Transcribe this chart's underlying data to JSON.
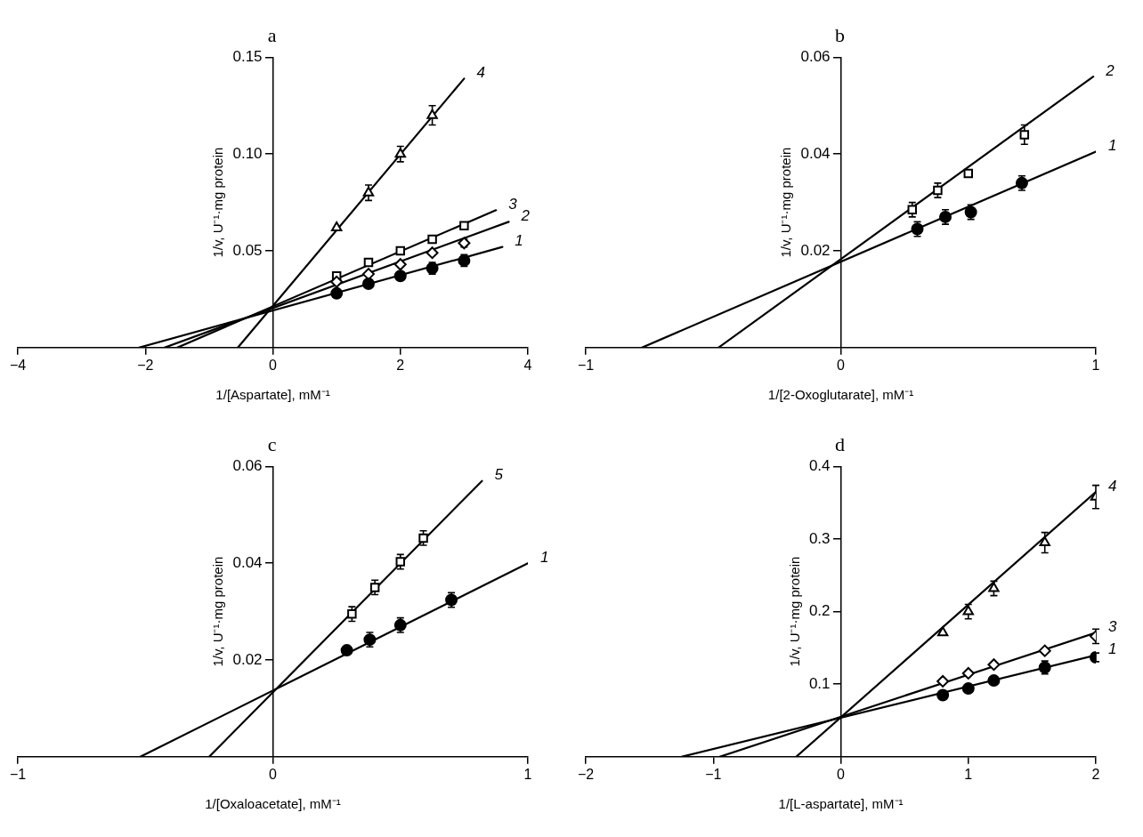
{
  "chart_data": [
    {
      "type": "scatter",
      "title": "a",
      "xlabel": "1/[Aspartate], mM⁻¹",
      "ylabel": "1/v, U⁻¹·mg protein",
      "xlim": [
        -4,
        4
      ],
      "xticks": [
        {
          "value": -4,
          "label": "−4"
        },
        {
          "value": -2,
          "label": "−2"
        },
        0,
        2,
        4
      ],
      "ylim": [
        0,
        0.15
      ],
      "yticks": [
        0.05,
        {
          "value": 0.1,
          "label": "0.10"
        },
        0.15
      ],
      "grid": false,
      "legend": false,
      "series": [
        {
          "type": "scatter",
          "marker": "circle",
          "color": "#000000",
          "x": [
            1,
            1.5,
            2,
            2.5,
            3
          ],
          "values": [
            0.028,
            0.033,
            0.037,
            0.041,
            0.045
          ],
          "errors": [
            null,
            null,
            null,
            0.003,
            0.003
          ]
        },
        {
          "type": "scatter",
          "marker": "diamond",
          "color": "#000000",
          "x": [
            1,
            1.5,
            2,
            2.5,
            3
          ],
          "values": [
            0.034,
            0.038,
            0.043,
            0.049,
            0.054
          ],
          "errors": [
            null,
            null,
            null,
            null,
            0.002
          ]
        },
        {
          "type": "scatter",
          "marker": "square",
          "color": "#000000",
          "x": [
            1,
            1.5,
            2,
            2.5,
            3
          ],
          "values": [
            0.037,
            0.044,
            0.05,
            0.056,
            0.063
          ]
        },
        {
          "type": "scatter",
          "marker": "triangle",
          "color": "#000000",
          "x": [
            1,
            1.5,
            2,
            2.5
          ],
          "values": [
            0.062,
            0.08,
            0.1,
            0.12
          ],
          "errors": [
            null,
            0.004,
            0.004,
            0.005
          ]
        },
        {
          "type": "line",
          "name": "1",
          "marker": "none",
          "color": "#000000",
          "x": [
            -2.1,
            3.6
          ],
          "values": [
            0,
            0.052
          ]
        },
        {
          "type": "line",
          "name": "2",
          "marker": "none",
          "color": "#000000",
          "x": [
            -1.7,
            3.7
          ],
          "values": [
            0,
            0.065
          ]
        },
        {
          "type": "line",
          "name": "3",
          "marker": "none",
          "color": "#000000",
          "x": [
            -1.5,
            3.5
          ],
          "values": [
            0,
            0.071
          ]
        },
        {
          "type": "line",
          "name": "4",
          "marker": "none",
          "color": "#000000",
          "x": [
            -0.55,
            3
          ],
          "values": [
            0,
            0.139
          ]
        }
      ]
    },
    {
      "type": "scatter",
      "title": "b",
      "xlabel": "1/[2-Oxoglutarate], mM⁻¹",
      "ylabel": "1/v, U⁻¹·mg protein",
      "xlim": [
        -1,
        1
      ],
      "xticks": [
        {
          "value": -1,
          "label": "−1"
        },
        0,
        1
      ],
      "ylim": [
        0,
        0.06
      ],
      "yticks": [
        0.02,
        0.04,
        0.06
      ],
      "grid": false,
      "legend": false,
      "series": [
        {
          "type": "scatter",
          "marker": "circle",
          "color": "#000000",
          "x": [
            0.3,
            0.41,
            0.51,
            0.71
          ],
          "values": [
            0.0245,
            0.027,
            0.028,
            0.034
          ],
          "errors": [
            0.0015,
            0.0015,
            0.0015,
            0.0015
          ]
        },
        {
          "type": "scatter",
          "marker": "square",
          "color": "#000000",
          "x": [
            0.28,
            0.38,
            0.5,
            0.72
          ],
          "values": [
            0.0285,
            0.0325,
            0.036,
            0.044
          ],
          "errors": [
            0.0015,
            0.0015,
            null,
            0.002
          ]
        },
        {
          "type": "line",
          "name": "1",
          "marker": "none",
          "color": "#000000",
          "x": [
            -0.78,
            1
          ],
          "values": [
            0,
            0.0405
          ]
        },
        {
          "type": "line",
          "name": "2",
          "marker": "none",
          "color": "#000000",
          "x": [
            -0.48,
            0.99
          ],
          "values": [
            0,
            0.056
          ]
        }
      ]
    },
    {
      "type": "scatter",
      "title": "c",
      "xlabel": "1/[Oxaloacetate], mM⁻¹",
      "ylabel": "1/v, U⁻¹·mg protein",
      "xlim": [
        -1,
        1
      ],
      "xticks": [
        {
          "value": -1,
          "label": "−1"
        },
        0,
        1
      ],
      "ylim": [
        0,
        0.06
      ],
      "yticks": [
        0.02,
        0.04,
        0.06
      ],
      "grid": false,
      "legend": false,
      "series": [
        {
          "type": "scatter",
          "marker": "circle",
          "color": "#000000",
          "x": [
            0.29,
            0.38,
            0.5,
            0.7
          ],
          "values": [
            0.022,
            0.0242,
            0.0272,
            0.0324
          ],
          "errors": [
            null,
            0.0015,
            0.0015,
            0.0015
          ]
        },
        {
          "type": "scatter",
          "marker": "square",
          "color": "#000000",
          "x": [
            0.31,
            0.4,
            0.5,
            0.59
          ],
          "values": [
            0.0295,
            0.035,
            0.0403,
            0.0452
          ],
          "errors": [
            0.0015,
            0.0015,
            0.0015,
            0.0015
          ]
        },
        {
          "type": "line",
          "name": "1",
          "marker": "none",
          "color": "#000000",
          "x": [
            -0.52,
            1
          ],
          "values": [
            0,
            0.04
          ]
        },
        {
          "type": "line",
          "name": "5",
          "marker": "none",
          "color": "#000000",
          "x": [
            -0.25,
            0.82
          ],
          "values": [
            0,
            0.057
          ]
        }
      ]
    },
    {
      "type": "scatter",
      "title": "d",
      "xlabel": "1/[L-aspartate], mM⁻¹",
      "ylabel": "1/v, U⁻¹·mg protein",
      "xlim": [
        -2,
        2
      ],
      "xticks": [
        {
          "value": -2,
          "label": "−2"
        },
        {
          "value": -1,
          "label": "−1"
        },
        0,
        1,
        2
      ],
      "ylim": [
        0,
        0.4
      ],
      "yticks": [
        0.1,
        0.2,
        0.3,
        0.4
      ],
      "grid": false,
      "legend": false,
      "series": [
        {
          "type": "scatter",
          "marker": "circle",
          "color": "#000000",
          "x": [
            0.8,
            1,
            1.2,
            1.6,
            2
          ],
          "values": [
            0.085,
            0.094,
            0.105,
            0.123,
            0.137
          ],
          "errors": [
            null,
            null,
            null,
            0.009,
            0.006
          ]
        },
        {
          "type": "scatter",
          "marker": "diamond",
          "color": "#000000",
          "x": [
            0.8,
            1,
            1.2,
            1.6,
            2
          ],
          "values": [
            0.104,
            0.115,
            0.127,
            0.146,
            0.166
          ],
          "errors": [
            null,
            null,
            null,
            null,
            0.01
          ]
        },
        {
          "type": "scatter",
          "marker": "triangle",
          "color": "#000000",
          "x": [
            0.8,
            1,
            1.2,
            1.6,
            2
          ],
          "values": [
            0.171,
            0.2,
            0.232,
            0.295,
            0.358
          ],
          "errors": [
            null,
            0.01,
            0.01,
            0.014,
            0.016
          ]
        },
        {
          "type": "line",
          "name": "1",
          "marker": "none",
          "color": "#000000",
          "x": [
            -1.25,
            2
          ],
          "values": [
            0,
            0.14
          ]
        },
        {
          "type": "line",
          "name": "3",
          "marker": "none",
          "color": "#000000",
          "x": [
            -0.95,
            2
          ],
          "values": [
            0,
            0.171
          ]
        },
        {
          "type": "line",
          "name": "4",
          "marker": "none",
          "color": "#000000",
          "x": [
            -0.35,
            2
          ],
          "values": [
            0,
            0.365
          ]
        }
      ]
    }
  ]
}
